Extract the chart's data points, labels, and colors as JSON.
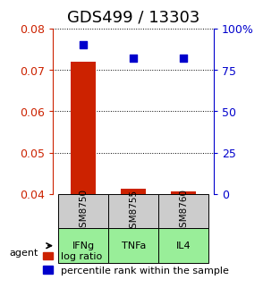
{
  "title": "GDS499 / 13303",
  "samples": [
    "GSM8750",
    "GSM8755",
    "GSM8760"
  ],
  "agents": [
    "IFNg",
    "TNFa",
    "IL4"
  ],
  "log_ratio": [
    0.072,
    0.0412,
    0.0405
  ],
  "percentile_rank": [
    90,
    82,
    82
  ],
  "ylim_left": [
    0.04,
    0.08
  ],
  "ylim_right": [
    0,
    100
  ],
  "yticks_left": [
    0.04,
    0.05,
    0.06,
    0.07,
    0.08
  ],
  "yticks_right": [
    0,
    25,
    50,
    75,
    100
  ],
  "ytick_labels_right": [
    "0",
    "25",
    "50",
    "75",
    "100%"
  ],
  "bar_color": "#cc2200",
  "dot_color": "#0000cc",
  "sample_box_color": "#cccccc",
  "agent_box_color": "#99ee99",
  "agent_box_border": "#000000",
  "legend_bar_label": "log ratio",
  "legend_dot_label": "percentile rank within the sample",
  "agent_label": "agent",
  "title_fontsize": 13,
  "axis_fontsize": 9,
  "legend_fontsize": 8,
  "bar_width": 0.5
}
